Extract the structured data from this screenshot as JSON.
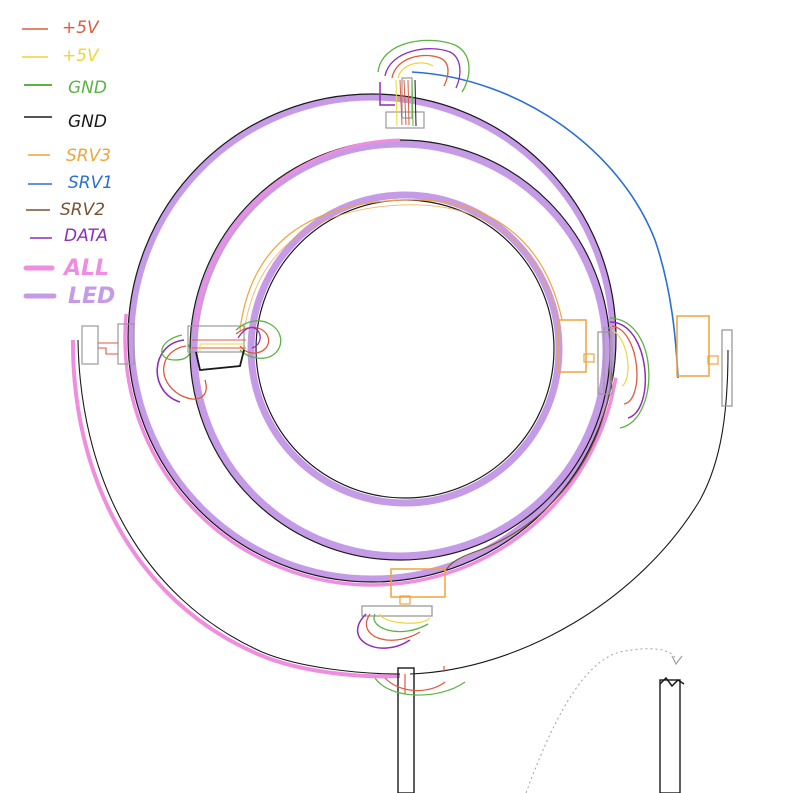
{
  "legend": {
    "items": [
      {
        "key": "p5v_red",
        "label": "+5V",
        "color": "#e05a3c"
      },
      {
        "key": "p5v_yellow",
        "label": "+5V",
        "color": "#f0d43a"
      },
      {
        "key": "gnd_green",
        "label": "GND",
        "color": "#5cb343"
      },
      {
        "key": "gnd_black",
        "label": "GND",
        "color": "#1a1a1a"
      },
      {
        "key": "srv3",
        "label": "SRV3",
        "color": "#f0a43c"
      },
      {
        "key": "srv1",
        "label": "SRV1",
        "color": "#2a6fd6"
      },
      {
        "key": "srv2",
        "label": "SRV2",
        "color": "#7a5230"
      },
      {
        "key": "data",
        "label": "DATA",
        "color": "#8e2fb8"
      },
      {
        "key": "all",
        "label": "ALL",
        "color": "#ef8ee0"
      },
      {
        "key": "led",
        "label": "LED",
        "color": "#c59ae6"
      }
    ]
  },
  "colors": {
    "all_wire": "#ef8ee0",
    "led_strip": "#c59ae6",
    "outline": "#1a1a1a",
    "servo": "#f0a43c",
    "bracket": "#9a9a9a",
    "arrow": "#a0a0a0"
  }
}
